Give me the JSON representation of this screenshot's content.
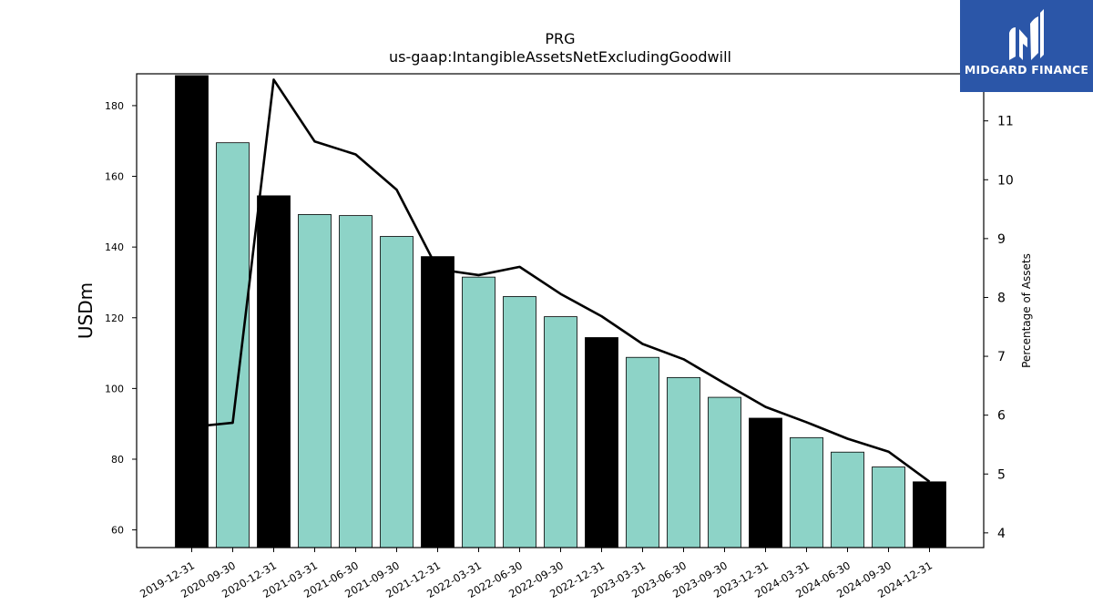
{
  "chart_data": {
    "type": "bar",
    "title": "PRG",
    "subtitle": "us-gaap:IntangibleAssetsNetExcludingGoodwill",
    "ylabel": "USDm",
    "y2label": "Percentage of Assets",
    "categories": [
      "2019-12-31",
      "2020-09-30",
      "2020-12-31",
      "2021-03-31",
      "2021-06-30",
      "2021-09-30",
      "2021-12-31",
      "2022-03-31",
      "2022-06-30",
      "2022-09-30",
      "2022-12-31",
      "2023-03-31",
      "2023-06-30",
      "2023-09-30",
      "2023-12-31",
      "2024-03-31",
      "2024-06-30",
      "2024-09-30",
      "2024-12-31"
    ],
    "series": [
      {
        "type": "bar",
        "values": [
          188.5,
          169.5,
          154.5,
          149.2,
          148.9,
          143.0,
          137.3,
          131.5,
          126.0,
          120.3,
          114.4,
          108.8,
          103.1,
          97.5,
          91.6,
          86.1,
          82.0,
          77.8,
          73.6
        ],
        "colors": [
          "#000000",
          "#8dd3c7",
          "#000000",
          "#8dd3c7",
          "#8dd3c7",
          "#8dd3c7",
          "#000000",
          "#8dd3c7",
          "#8dd3c7",
          "#8dd3c7",
          "#000000",
          "#8dd3c7",
          "#8dd3c7",
          "#8dd3c7",
          "#000000",
          "#8dd3c7",
          "#8dd3c7",
          "#8dd3c7",
          "#000000"
        ]
      },
      {
        "type": "line",
        "axis": "right",
        "values": [
          5.8,
          5.87,
          11.7,
          10.65,
          10.43,
          9.83,
          8.48,
          8.38,
          8.52,
          8.06,
          7.68,
          7.21,
          6.95,
          6.54,
          6.14,
          5.88,
          5.6,
          5.38,
          4.87
        ]
      }
    ],
    "ylim": [
      55,
      189
    ],
    "y2lim": [
      3.75,
      11.8
    ],
    "yticks": [
      60,
      80,
      100,
      120,
      140,
      160,
      180
    ],
    "y2ticks": [
      4,
      5,
      6,
      7,
      8,
      9,
      10,
      11
    ],
    "grid": false,
    "colors": {
      "annual": "#000000",
      "quarterly": "#8dd3c7",
      "line": "#000000"
    }
  },
  "logo": {
    "text": "MIDGARD FINANCE"
  }
}
